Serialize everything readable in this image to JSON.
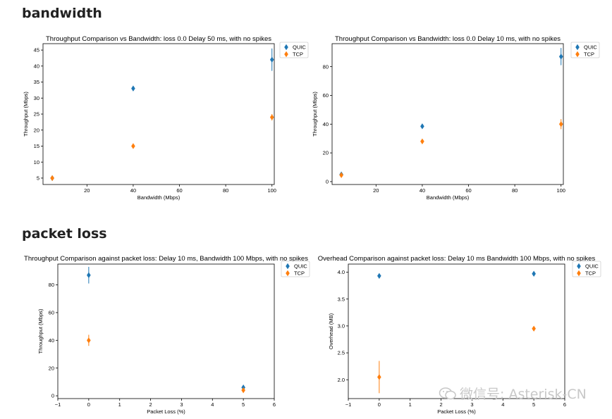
{
  "sections": {
    "bandwidth": "bandwidth",
    "packet_loss": "packet loss"
  },
  "watermark": {
    "text": "微信号: Asterisk-CN",
    "icon": "wechat-icon"
  },
  "colors": {
    "QUIC": "#1f77b4",
    "TCP": "#ff7f0e"
  },
  "chart_data": [
    {
      "type": "scatter",
      "title": "Throughput Comparison vs Bandwidth: loss 0.0 Delay 50 ms, with no spikes",
      "xlabel": "Bandwidth (Mbps)",
      "ylabel": "Throughput (Mbps)",
      "xlim": [
        1,
        101
      ],
      "ylim": [
        3,
        47
      ],
      "xticks": [
        20,
        40,
        60,
        80,
        100
      ],
      "yticks": [
        5,
        10,
        15,
        20,
        25,
        30,
        35,
        40,
        45
      ],
      "grid": false,
      "legend": "outside-top-right",
      "series": [
        {
          "name": "QUIC",
          "points": [
            {
              "x": 5,
              "y": 5,
              "err": 0
            },
            {
              "x": 40,
              "y": 33,
              "err": 0.5
            },
            {
              "x": 100,
              "y": 42,
              "err": 3.5
            }
          ]
        },
        {
          "name": "TCP",
          "points": [
            {
              "x": 5,
              "y": 5,
              "err": 0.3
            },
            {
              "x": 40,
              "y": 15,
              "err": 0.3
            },
            {
              "x": 100,
              "y": 24,
              "err": 1
            }
          ]
        }
      ]
    },
    {
      "type": "scatter",
      "title": "Throughput Comparison vs Bandwidth: loss 0.0 Delay 10 ms, with no spikes",
      "xlabel": "Bandwidth (Mbps)",
      "ylabel": "Throughput (Mbps)",
      "xlim": [
        1,
        101
      ],
      "ylim": [
        -2,
        96
      ],
      "xticks": [
        20,
        40,
        60,
        80,
        100
      ],
      "yticks": [
        0,
        20,
        40,
        60,
        80
      ],
      "grid": false,
      "legend": "outside-top-right",
      "series": [
        {
          "name": "QUIC",
          "points": [
            {
              "x": 5,
              "y": 5,
              "err": 0
            },
            {
              "x": 40,
              "y": 38.5,
              "err": 1
            },
            {
              "x": 100,
              "y": 87,
              "err": 6
            }
          ]
        },
        {
          "name": "TCP",
          "points": [
            {
              "x": 5,
              "y": 4.5,
              "err": 0.5
            },
            {
              "x": 40,
              "y": 28,
              "err": 1
            },
            {
              "x": 100,
              "y": 40,
              "err": 3.5
            }
          ]
        }
      ]
    },
    {
      "type": "scatter",
      "title": "Throughput Comparison against packet loss: Delay 10 ms, Bandwidth 100 Mbps, with no spikes",
      "xlabel": "Packet Loss (%)",
      "ylabel": "Throughput (Mbps)",
      "xlim": [
        -1,
        6
      ],
      "ylim": [
        -2,
        95
      ],
      "xticks": [
        -1,
        0,
        1,
        2,
        3,
        4,
        5,
        6
      ],
      "yticks": [
        0,
        20,
        40,
        60,
        80
      ],
      "grid": false,
      "legend": "outside-top-right",
      "series": [
        {
          "name": "QUIC",
          "points": [
            {
              "x": 0,
              "y": 87,
              "err": 6
            },
            {
              "x": 5,
              "y": 6,
              "err": 1
            }
          ]
        },
        {
          "name": "TCP",
          "points": [
            {
              "x": 0,
              "y": 40,
              "err": 4
            },
            {
              "x": 5,
              "y": 4,
              "err": 0.5
            }
          ]
        }
      ]
    },
    {
      "type": "scatter",
      "title": "Overhead Comparison against packet loss: Delay 10 ms Bandwidth 100 Mbps, with no spikes",
      "xlabel": "Packet Loss (%)",
      "ylabel": "Overhead (MB)",
      "xlim": [
        -1,
        6
      ],
      "ylim": [
        1.65,
        4.15
      ],
      "xticks": [
        -1,
        0,
        1,
        2,
        3,
        4,
        5,
        6
      ],
      "yticks": [
        2.0,
        2.5,
        3.0,
        3.5,
        4.0
      ],
      "ytick_labels": [
        "2.0",
        "2.5",
        "3.0",
        "3.5",
        "4.0"
      ],
      "grid": false,
      "legend": "outside-top-right",
      "series": [
        {
          "name": "QUIC",
          "points": [
            {
              "x": 0,
              "y": 3.93,
              "err": 0
            },
            {
              "x": 5,
              "y": 3.97,
              "err": 0
            }
          ]
        },
        {
          "name": "TCP",
          "points": [
            {
              "x": 0,
              "y": 2.05,
              "err": 0.3
            },
            {
              "x": 5,
              "y": 2.95,
              "err": 0
            }
          ]
        }
      ]
    }
  ]
}
